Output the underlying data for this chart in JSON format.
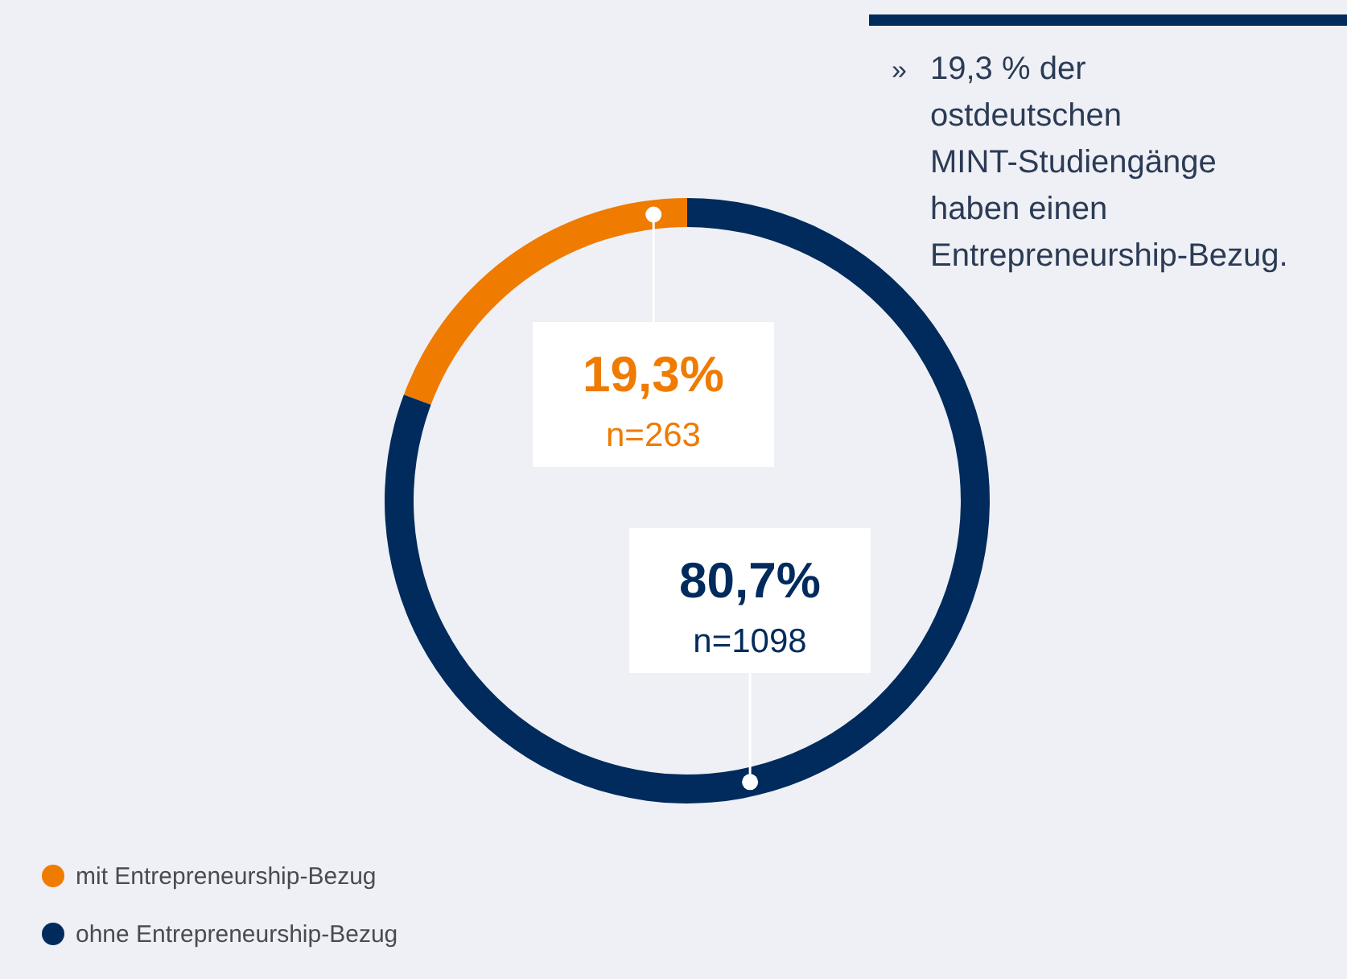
{
  "chart_data": {
    "type": "donut",
    "categories": [
      "mit Entrepreneurship-Bezug",
      "ohne Entrepreneurship-Bezug"
    ],
    "values": [
      19.3,
      80.7
    ],
    "colors": [
      "#ef7b00",
      "#002b5c"
    ],
    "value_labels": [
      "19,3%",
      "80,7%"
    ],
    "annotations": [
      {
        "text": "n=263",
        "x": "mit Entrepreneurship-Bezug"
      },
      {
        "text": "n=1098",
        "x": "ohne Entrepreneurship-Bezug"
      },
      "» 19,3 % der ostdeutschen MINT-Studiengänge haben einen Entrepreneurship-Bezug."
    ],
    "legend": "bottom left"
  }
}
